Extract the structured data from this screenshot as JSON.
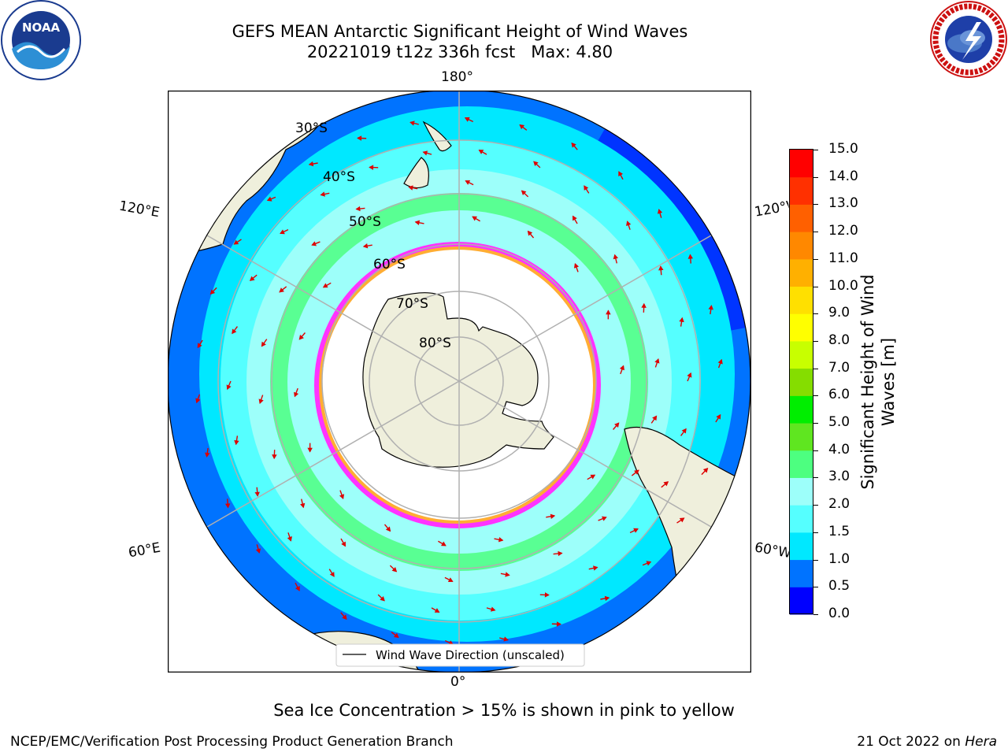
{
  "title": {
    "line1": "GEFS MEAN Antarctic Significant Height of Wind Waves",
    "line2": "20221019 t12z 336h fcst   Max: 4.80"
  },
  "map": {
    "projection": "south-polar-stereographic",
    "longitude_labels": {
      "top": "180°",
      "bottom": "0°",
      "left_upper": "120°E",
      "left_lower": "60°E",
      "right_upper": "120°W",
      "right_lower": "60°W"
    },
    "latitude_labels": [
      "30°S",
      "40°S",
      "50°S",
      "60°S",
      "70°S",
      "80°S"
    ],
    "legend": {
      "line_label": "Wind Wave Direction (unscaled)"
    },
    "land_color": "#efefdc",
    "ice_colors": [
      "#ff33ff",
      "#ff9900",
      "#ffcc00"
    ],
    "arrow_color": "#dd0000"
  },
  "colorbar": {
    "title_line1": "Significant Height of Wind",
    "title_line2": "Waves [m]",
    "ticks": [
      "0.0",
      "0.5",
      "1.0",
      "1.5",
      "2.0",
      "3.0",
      "4.0",
      "5.0",
      "6.0",
      "7.0",
      "8.0",
      "9.0",
      "10.0",
      "11.0",
      "12.0",
      "13.0",
      "14.0",
      "15.0"
    ],
    "colors": [
      "#0000ff",
      "#0073ff",
      "#00e8ff",
      "#55ffff",
      "#9dfffa",
      "#4dff80",
      "#5fe620",
      "#00ee00",
      "#85dd00",
      "#c8ff00",
      "#ffff00",
      "#ffe000",
      "#ffb000",
      "#ff8800",
      "#ff6000",
      "#ff3000",
      "#ff0000"
    ]
  },
  "logos": {
    "noaa": "NOAA",
    "nws": "NATIONAL WEATHER SERVICE"
  },
  "note": "Sea Ice Concentration > 15% is shown in pink to yellow",
  "footer": {
    "left": "NCEP/EMC/Verification Post Processing Product Generation Branch",
    "right_prefix": "21 Oct 2022 on ",
    "right_host": "Hera"
  }
}
